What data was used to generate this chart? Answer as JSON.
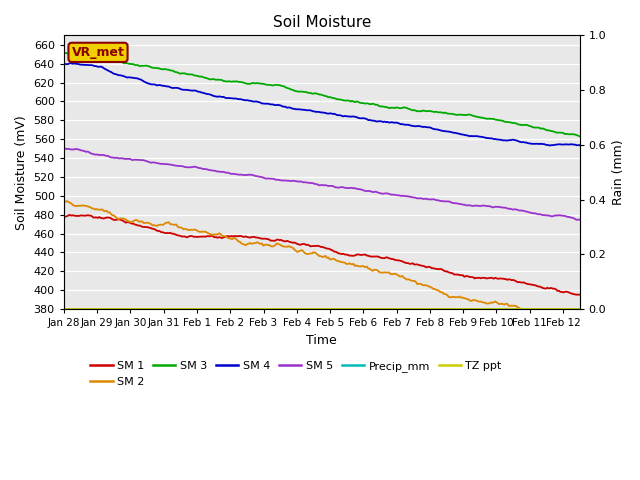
{
  "title": "Soil Moisture",
  "xlabel": "Time",
  "ylabel_left": "Soil Moisture (mV)",
  "ylabel_right": "Rain (mm)",
  "annotation": "VR_met",
  "ylim_left": [
    380,
    670
  ],
  "ylim_right": [
    0.0,
    1.0
  ],
  "yticks_left": [
    380,
    400,
    420,
    440,
    460,
    480,
    500,
    520,
    540,
    560,
    580,
    600,
    620,
    640,
    660
  ],
  "yticks_right": [
    0.0,
    0.2,
    0.4,
    0.6,
    0.8,
    1.0
  ],
  "xtick_labels": [
    "Jan 28",
    "Jan 29",
    "Jan 30",
    "Jan 31",
    "Feb 1",
    "Feb 2",
    "Feb 3",
    "Feb 4",
    "Feb 5",
    "Feb 6",
    "Feb 7",
    "Feb 8",
    "Feb 9",
    "Feb 10",
    "Feb 11",
    "Feb 12"
  ],
  "bg_color": "#e8e8e8",
  "series": {
    "SM1": {
      "color": "#cc0000"
    },
    "SM2": {
      "color": "#dd8800"
    },
    "SM3": {
      "color": "#00aa00"
    },
    "SM4": {
      "color": "#0000cc"
    },
    "SM5": {
      "color": "#9933cc"
    },
    "Precip_mm": {
      "color": "#00bbbb"
    },
    "TZ_ppt": {
      "color": "#cccc00"
    }
  },
  "legend_entries": [
    {
      "label": "SM 1",
      "color": "#cc0000"
    },
    {
      "label": "SM 2",
      "color": "#dd8800"
    },
    {
      "label": "SM 3",
      "color": "#00aa00"
    },
    {
      "label": "SM 4",
      "color": "#0000cc"
    },
    {
      "label": "SM 5",
      "color": "#9933cc"
    },
    {
      "label": "Precip_mm",
      "color": "#00bbbb"
    },
    {
      "label": "TZ ppt",
      "color": "#cccc00"
    }
  ]
}
